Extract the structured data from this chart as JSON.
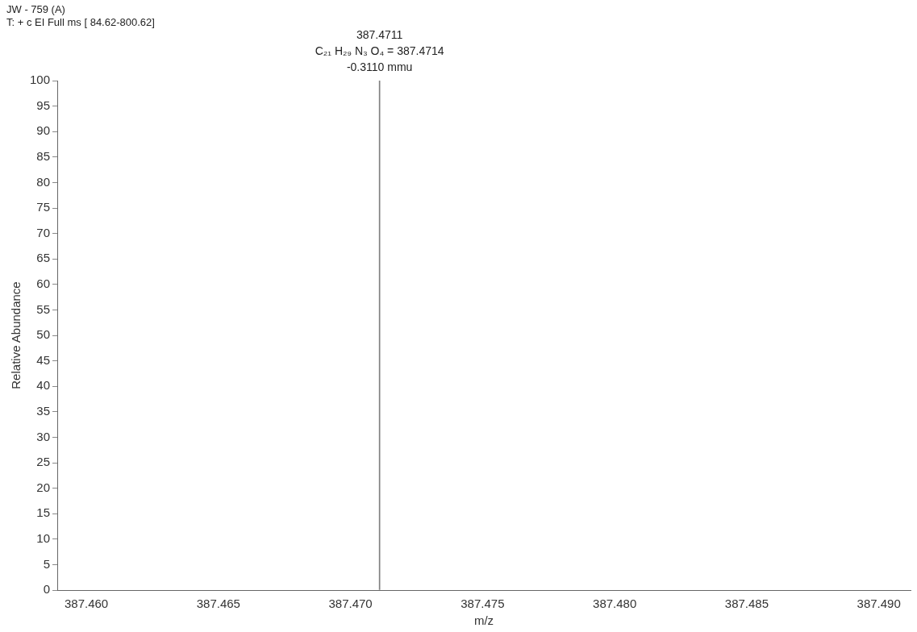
{
  "chart_data": {
    "type": "bar",
    "title": "JW - 759 (A)",
    "subtitle": "T: + c EI Full ms [ 84.62-800.62]",
    "xlabel": "m/z",
    "ylabel": "Relative Abundance",
    "x": [
      387.4711
    ],
    "values": [
      100
    ],
    "color": "#7f7f7f",
    "xlim": [
      387.4589,
      387.4912
    ],
    "xticks": [
      {
        "value": 387.46,
        "label": "387.460"
      },
      {
        "value": 387.465,
        "label": "387.465"
      },
      {
        "value": 387.47,
        "label": "387.470"
      },
      {
        "value": 387.475,
        "label": "387.475"
      },
      {
        "value": 387.48,
        "label": "387.480"
      },
      {
        "value": 387.485,
        "label": "387.485"
      },
      {
        "value": 387.49,
        "label": "387.490"
      }
    ],
    "ylim": [
      0,
      100
    ],
    "yticks": [
      0,
      5,
      10,
      15,
      20,
      25,
      30,
      35,
      40,
      45,
      50,
      55,
      60,
      65,
      70,
      75,
      80,
      85,
      90,
      95,
      100
    ],
    "annotations": [
      "387.4711",
      "C₂₁ H₂₉ N₃ O₄ = 387.4714",
      "-0.3110 mmu"
    ],
    "grid": false,
    "legend": false
  }
}
